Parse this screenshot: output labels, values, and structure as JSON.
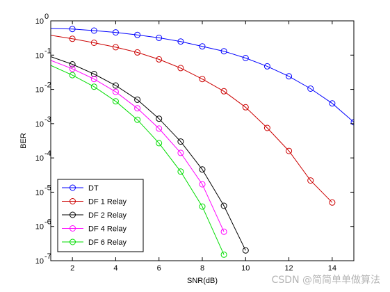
{
  "chart_data": {
    "type": "line",
    "xlabel": "SNR(dB)",
    "ylabel": "BER",
    "xlim": [
      1,
      15
    ],
    "ylim": [
      1e-07,
      1
    ],
    "yscale": "log",
    "x_ticks": [
      2,
      4,
      6,
      8,
      10,
      12,
      14
    ],
    "y_tick_exponents": [
      0,
      -1,
      -2,
      -3,
      -4,
      -5,
      -6,
      -7
    ],
    "y_tick_base": "10",
    "grid": false,
    "legend_position": "bottom-left",
    "series": [
      {
        "name": "DT",
        "color": "#0000ff",
        "x": [
          1,
          2,
          3,
          4,
          5,
          6,
          7,
          8,
          9,
          10,
          11,
          12,
          13,
          14,
          15
        ],
        "y": [
          0.6,
          0.58,
          0.52,
          0.46,
          0.39,
          0.32,
          0.25,
          0.18,
          0.13,
          0.082,
          0.047,
          0.024,
          0.0105,
          0.0039,
          0.0011
        ]
      },
      {
        "name": "DF 1 Relay",
        "color": "#cc0000",
        "x": [
          1,
          2,
          3,
          4,
          5,
          6,
          7,
          8,
          9,
          10,
          11,
          12,
          13,
          14
        ],
        "y": [
          0.38,
          0.3,
          0.23,
          0.17,
          0.12,
          0.075,
          0.042,
          0.02,
          0.0088,
          0.003,
          0.00075,
          0.00016,
          2.2e-05,
          5e-06
        ]
      },
      {
        "name": "DF 2 Relay",
        "color": "#000000",
        "x": [
          1,
          2,
          3,
          4,
          5,
          6,
          7,
          8,
          9,
          10
        ],
        "y": [
          0.09,
          0.054,
          0.028,
          0.013,
          0.005,
          0.0014,
          0.0003,
          4.6e-05,
          4e-06,
          2e-07
        ]
      },
      {
        "name": "DF 4 Relay",
        "color": "#ff00ff",
        "x": [
          1,
          2,
          3,
          4,
          5,
          6,
          7,
          8,
          9
        ],
        "y": [
          0.07,
          0.04,
          0.02,
          0.0085,
          0.0028,
          0.00072,
          0.00014,
          1.7e-05,
          7e-07
        ]
      },
      {
        "name": "DF 6 Relay",
        "color": "#00dd00",
        "x": [
          1,
          2,
          3,
          4,
          5,
          6,
          7,
          8,
          9
        ],
        "y": [
          0.05,
          0.026,
          0.012,
          0.0045,
          0.0013,
          0.00027,
          4e-05,
          3.8e-06,
          1.5e-07
        ]
      }
    ]
  },
  "watermark": "CSDN @简简单单做算法"
}
